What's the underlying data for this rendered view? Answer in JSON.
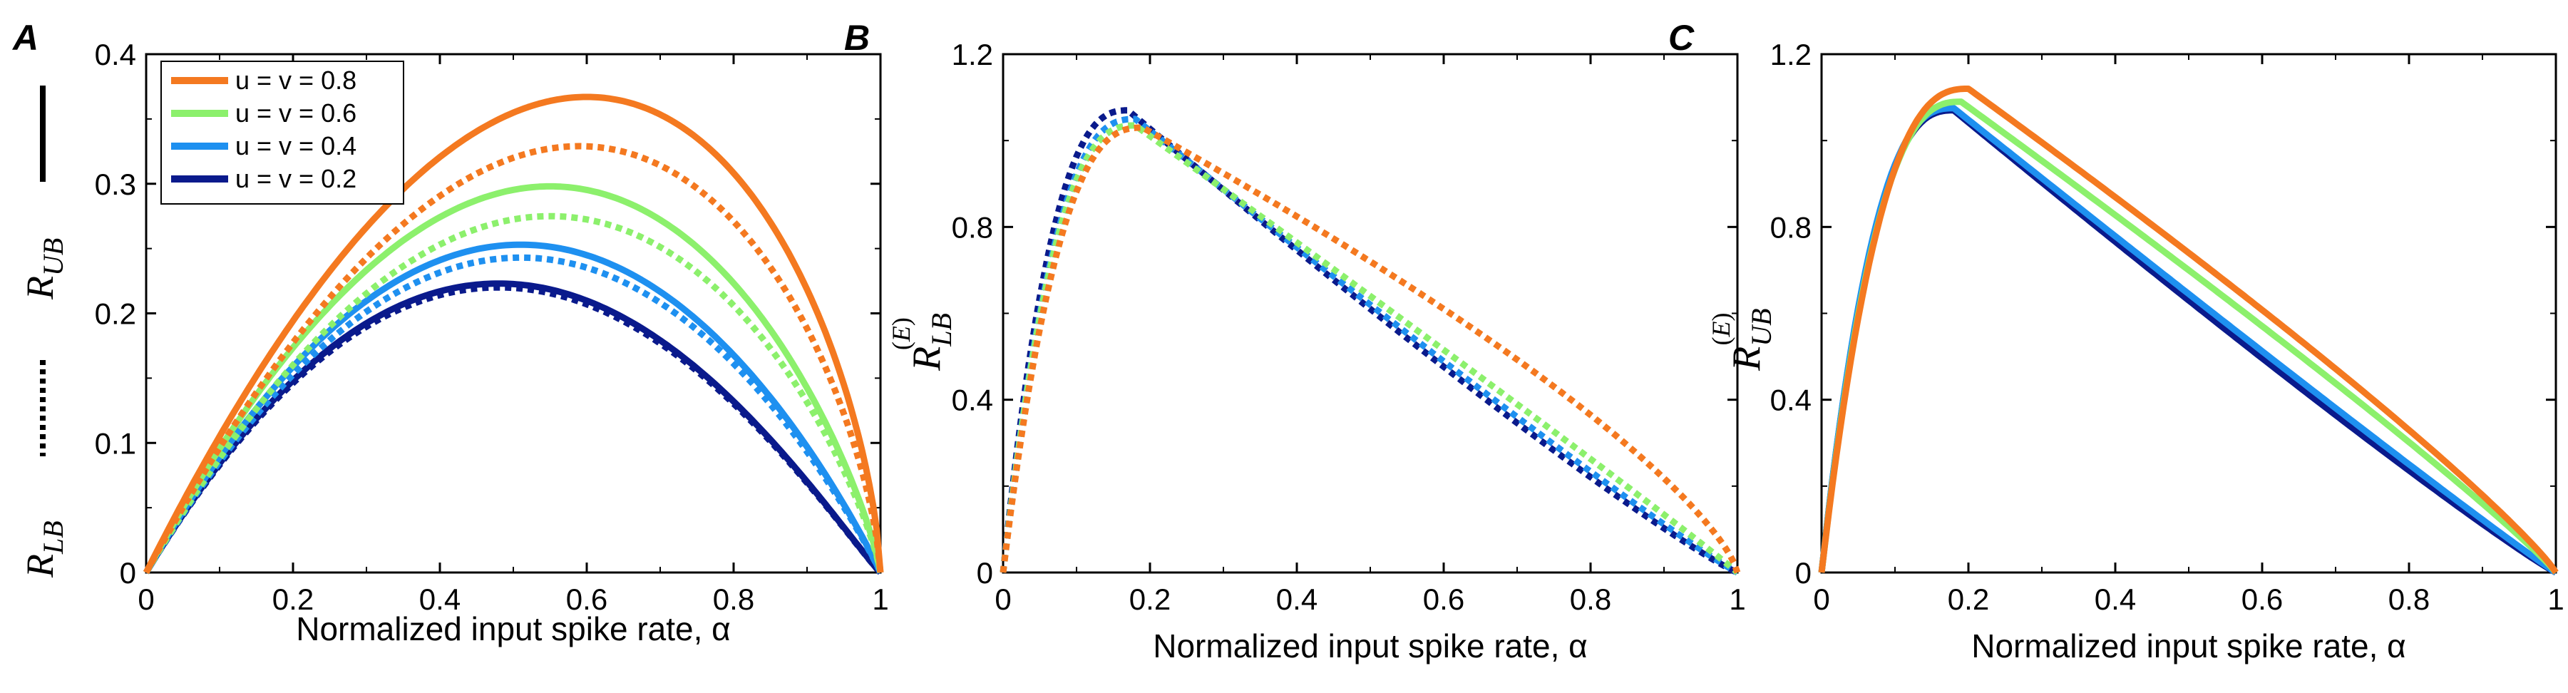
{
  "colors": {
    "u08": "#F47920",
    "u06": "#8CF06C",
    "u04": "#1E90F0",
    "u02": "#0A1A8C"
  },
  "chart_data": [
    {
      "panel": "A",
      "type": "line",
      "xlabel": "Normalized input spike rate, α",
      "ylabel_upper": "R_UB",
      "ylabel_lower": "R_LB",
      "xlim": [
        0,
        1
      ],
      "ylim": [
        0,
        0.4
      ],
      "xticks": [
        "0",
        "0.2",
        "0.4",
        "0.6",
        "0.8",
        "1"
      ],
      "yticks": [
        "0",
        "0.1",
        "0.2",
        "0.3",
        "0.4"
      ],
      "legend": {
        "placement": "top-left",
        "entries": [
          "u = v = 0.8",
          "u = v = 0.6",
          "u = v = 0.4",
          "u = v = 0.2"
        ]
      },
      "series": [
        {
          "name": "u = v = 0.8 (R_UB)",
          "color": "u08",
          "style": "solid",
          "peak": [
            0.6,
            0.367
          ]
        },
        {
          "name": "u = v = 0.8 (R_LB)",
          "color": "u08",
          "style": "dashed",
          "peak": [
            0.59,
            0.329
          ]
        },
        {
          "name": "u = v = 0.6 (R_UB)",
          "color": "u06",
          "style": "solid",
          "peak": [
            0.55,
            0.298
          ]
        },
        {
          "name": "u = v = 0.6 (R_LB)",
          "color": "u06",
          "style": "dashed",
          "peak": [
            0.55,
            0.275
          ]
        },
        {
          "name": "u = v = 0.4 (R_UB)",
          "color": "u04",
          "style": "solid",
          "peak": [
            0.51,
            0.253
          ]
        },
        {
          "name": "u = v = 0.4 (R_LB)",
          "color": "u04",
          "style": "dashed",
          "peak": [
            0.51,
            0.243
          ]
        },
        {
          "name": "u = v = 0.2 (R_UB)",
          "color": "u02",
          "style": "solid",
          "peak": [
            0.48,
            0.223
          ]
        },
        {
          "name": "u = v = 0.2 (R_LB)",
          "color": "u02",
          "style": "dashed",
          "peak": [
            0.48,
            0.22
          ]
        }
      ]
    },
    {
      "panel": "B",
      "type": "line",
      "xlabel": "Normalized input spike rate, α",
      "ylabel": "R_LB^(E)",
      "xlim": [
        0,
        1
      ],
      "ylim": [
        0,
        1.2
      ],
      "xticks": [
        "0",
        "0.2",
        "0.4",
        "0.6",
        "0.8",
        "1"
      ],
      "yticks": [
        "0",
        "0.4",
        "0.8",
        "1.2"
      ],
      "series": [
        {
          "name": "u = v = 0.8",
          "color": "u08",
          "style": "dashed",
          "peak": [
            0.19,
            1.03
          ],
          "mid": 0.72
        },
        {
          "name": "u = v = 0.6",
          "color": "u06",
          "style": "dashed",
          "peak": [
            0.18,
            1.035
          ],
          "mid": 0.64
        },
        {
          "name": "u = v = 0.4",
          "color": "u04",
          "style": "dashed",
          "peak": [
            0.18,
            1.05
          ],
          "mid": 0.62
        },
        {
          "name": "u = v = 0.2",
          "color": "u02",
          "style": "dashed",
          "peak": [
            0.17,
            1.07
          ],
          "mid": 0.61
        }
      ]
    },
    {
      "panel": "C",
      "type": "line",
      "xlabel": "Normalized input spike rate, α",
      "ylabel": "R_UB^(E)",
      "xlim": [
        0,
        1
      ],
      "ylim": [
        0,
        1.2
      ],
      "xticks": [
        "0",
        "0.2",
        "0.4",
        "0.6",
        "0.8",
        "1"
      ],
      "yticks": [
        "0",
        "0.4",
        "0.8",
        "1.2"
      ],
      "series": [
        {
          "name": "u = v = 0.2",
          "color": "u02",
          "style": "solid",
          "peak": [
            0.18,
            1.07
          ],
          "mid": 0.63
        },
        {
          "name": "u = v = 0.4",
          "color": "u04",
          "style": "solid",
          "peak": [
            0.18,
            1.075
          ],
          "mid": 0.645
        },
        {
          "name": "u = v = 0.6",
          "color": "u06",
          "style": "solid",
          "peak": [
            0.19,
            1.09
          ],
          "mid": 0.7
        },
        {
          "name": "u = v = 0.8",
          "color": "u08",
          "style": "solid",
          "peak": [
            0.2,
            1.12
          ],
          "mid": 0.74
        }
      ]
    }
  ]
}
